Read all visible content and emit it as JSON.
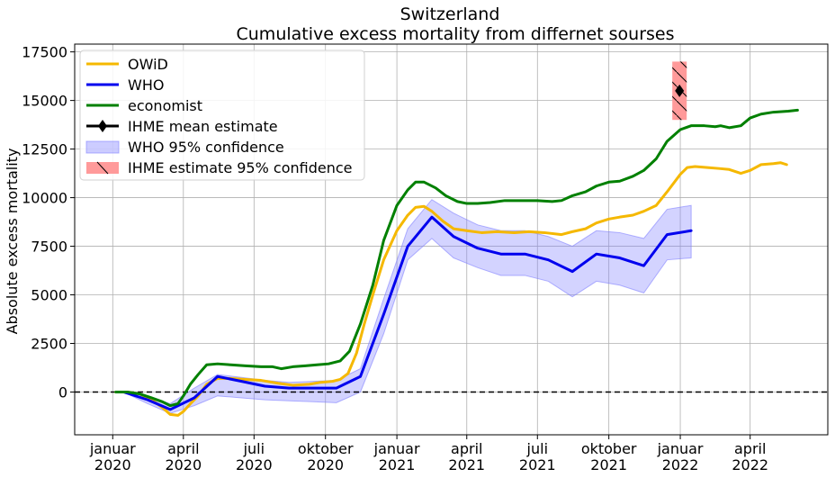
{
  "chart_data": {
    "type": "line",
    "title": "Switzerland",
    "subtitle": "Cumulative excess mortality from differnet sourses",
    "xlabel": "",
    "ylabel": "Absolute excess mortality",
    "xlim": [
      "2019-11-13",
      "2022-07-10"
    ],
    "ylim": [
      -2200,
      17900
    ],
    "grid": true,
    "legend_position": "top-left",
    "y_ticks": [
      0,
      2500,
      5000,
      7500,
      10000,
      12500,
      15000,
      17500
    ],
    "x_ticks": [
      {
        "date": "2020-01-01",
        "label": "januar\n2020"
      },
      {
        "date": "2020-04-01",
        "label": "april\n2020"
      },
      {
        "date": "2020-07-01",
        "label": "juli\n2020"
      },
      {
        "date": "2020-10-01",
        "label": "oktober\n2020"
      },
      {
        "date": "2021-01-01",
        "label": "januar\n2021"
      },
      {
        "date": "2021-04-01",
        "label": "april\n2021"
      },
      {
        "date": "2021-07-01",
        "label": "juli\n2021"
      },
      {
        "date": "2021-10-01",
        "label": "oktober\n2021"
      },
      {
        "date": "2022-01-01",
        "label": "januar\n2022"
      },
      {
        "date": "2022-04-01",
        "label": "april\n2022"
      }
    ],
    "reference_line": {
      "y": 0,
      "style": "dashed",
      "color": "#000000"
    },
    "series": [
      {
        "name": "OWiD",
        "color": "#f5b800",
        "points": [
          [
            "2020-01-05",
            0
          ],
          [
            "2020-01-20",
            0
          ],
          [
            "2020-02-05",
            -100
          ],
          [
            "2020-02-20",
            -400
          ],
          [
            "2020-03-05",
            -800
          ],
          [
            "2020-03-15",
            -1150
          ],
          [
            "2020-03-25",
            -1200
          ],
          [
            "2020-04-01",
            -1000
          ],
          [
            "2020-04-10",
            -600
          ],
          [
            "2020-04-20",
            -200
          ],
          [
            "2020-05-01",
            400
          ],
          [
            "2020-05-15",
            700
          ],
          [
            "2020-06-01",
            700
          ],
          [
            "2020-06-20",
            650
          ],
          [
            "2020-07-10",
            600
          ],
          [
            "2020-08-01",
            450
          ],
          [
            "2020-08-20",
            350
          ],
          [
            "2020-09-10",
            400
          ],
          [
            "2020-09-25",
            500
          ],
          [
            "2020-10-10",
            550
          ],
          [
            "2020-10-20",
            650
          ],
          [
            "2020-10-30",
            950
          ],
          [
            "2020-11-10",
            2000
          ],
          [
            "2020-11-20",
            3500
          ],
          [
            "2020-12-01",
            5000
          ],
          [
            "2020-12-15",
            6800
          ],
          [
            "2021-01-01",
            8300
          ],
          [
            "2021-01-15",
            9100
          ],
          [
            "2021-01-25",
            9500
          ],
          [
            "2021-02-05",
            9550
          ],
          [
            "2021-02-15",
            9300
          ],
          [
            "2021-03-01",
            8800
          ],
          [
            "2021-03-15",
            8400
          ],
          [
            "2021-04-01",
            8300
          ],
          [
            "2021-04-20",
            8200
          ],
          [
            "2021-05-10",
            8250
          ],
          [
            "2021-06-01",
            8200
          ],
          [
            "2021-06-20",
            8250
          ],
          [
            "2021-07-10",
            8200
          ],
          [
            "2021-08-01",
            8100
          ],
          [
            "2021-08-15",
            8250
          ],
          [
            "2021-09-01",
            8400
          ],
          [
            "2021-09-15",
            8700
          ],
          [
            "2021-10-01",
            8900
          ],
          [
            "2021-10-15",
            9000
          ],
          [
            "2021-11-01",
            9100
          ],
          [
            "2021-11-15",
            9300
          ],
          [
            "2021-12-01",
            9600
          ],
          [
            "2021-12-15",
            10300
          ],
          [
            "2022-01-01",
            11200
          ],
          [
            "2022-01-10",
            11550
          ],
          [
            "2022-01-20",
            11600
          ],
          [
            "2022-02-05",
            11550
          ],
          [
            "2022-02-20",
            11500
          ],
          [
            "2022-03-05",
            11450
          ],
          [
            "2022-03-20",
            11250
          ],
          [
            "2022-04-01",
            11400
          ],
          [
            "2022-04-15",
            11700
          ],
          [
            "2022-05-01",
            11750
          ],
          [
            "2022-05-10",
            11800
          ],
          [
            "2022-05-18",
            11700
          ]
        ]
      },
      {
        "name": "WHO",
        "color": "#0000ee",
        "points": [
          [
            "2020-01-15",
            0
          ],
          [
            "2020-02-15",
            -400
          ],
          [
            "2020-03-15",
            -900
          ],
          [
            "2020-04-15",
            -300
          ],
          [
            "2020-05-15",
            800
          ],
          [
            "2020-06-15",
            550
          ],
          [
            "2020-07-15",
            300
          ],
          [
            "2020-08-15",
            200
          ],
          [
            "2020-09-15",
            200
          ],
          [
            "2020-10-15",
            200
          ],
          [
            "2020-11-15",
            800
          ],
          [
            "2020-12-15",
            4000
          ],
          [
            "2021-01-15",
            7500
          ],
          [
            "2021-02-15",
            9000
          ],
          [
            "2021-03-15",
            8000
          ],
          [
            "2021-04-15",
            7400
          ],
          [
            "2021-05-15",
            7100
          ],
          [
            "2021-06-15",
            7100
          ],
          [
            "2021-07-15",
            6800
          ],
          [
            "2021-08-15",
            6200
          ],
          [
            "2021-09-15",
            7100
          ],
          [
            "2021-10-15",
            6900
          ],
          [
            "2021-11-15",
            6500
          ],
          [
            "2021-12-15",
            8100
          ],
          [
            "2022-01-15",
            8300
          ]
        ]
      },
      {
        "name": "economist",
        "color": "#008000",
        "points": [
          [
            "2020-01-05",
            0
          ],
          [
            "2020-01-20",
            0
          ],
          [
            "2020-02-05",
            -100
          ],
          [
            "2020-02-20",
            -300
          ],
          [
            "2020-03-05",
            -500
          ],
          [
            "2020-03-15",
            -700
          ],
          [
            "2020-03-25",
            -600
          ],
          [
            "2020-04-01",
            -200
          ],
          [
            "2020-04-10",
            400
          ],
          [
            "2020-04-20",
            900
          ],
          [
            "2020-05-01",
            1400
          ],
          [
            "2020-05-15",
            1450
          ],
          [
            "2020-06-01",
            1400
          ],
          [
            "2020-06-20",
            1350
          ],
          [
            "2020-07-10",
            1300
          ],
          [
            "2020-07-25",
            1300
          ],
          [
            "2020-08-05",
            1200
          ],
          [
            "2020-08-20",
            1300
          ],
          [
            "2020-09-05",
            1350
          ],
          [
            "2020-09-20",
            1400
          ],
          [
            "2020-10-05",
            1450
          ],
          [
            "2020-10-20",
            1600
          ],
          [
            "2020-11-01",
            2100
          ],
          [
            "2020-11-15",
            3500
          ],
          [
            "2020-12-01",
            5500
          ],
          [
            "2020-12-15",
            7800
          ],
          [
            "2021-01-01",
            9600
          ],
          [
            "2021-01-15",
            10400
          ],
          [
            "2021-01-25",
            10800
          ],
          [
            "2021-02-05",
            10800
          ],
          [
            "2021-02-20",
            10500
          ],
          [
            "2021-03-05",
            10100
          ],
          [
            "2021-03-20",
            9800
          ],
          [
            "2021-04-01",
            9700
          ],
          [
            "2021-04-15",
            9700
          ],
          [
            "2021-05-01",
            9750
          ],
          [
            "2021-05-20",
            9850
          ],
          [
            "2021-06-10",
            9850
          ],
          [
            "2021-07-01",
            9850
          ],
          [
            "2021-07-20",
            9800
          ],
          [
            "2021-08-01",
            9850
          ],
          [
            "2021-08-15",
            10100
          ],
          [
            "2021-09-01",
            10300
          ],
          [
            "2021-09-15",
            10600
          ],
          [
            "2021-10-01",
            10800
          ],
          [
            "2021-10-15",
            10850
          ],
          [
            "2021-11-01",
            11100
          ],
          [
            "2021-11-15",
            11400
          ],
          [
            "2021-12-01",
            12000
          ],
          [
            "2021-12-15",
            12900
          ],
          [
            "2022-01-01",
            13500
          ],
          [
            "2022-01-15",
            13700
          ],
          [
            "2022-02-01",
            13700
          ],
          [
            "2022-02-15",
            13650
          ],
          [
            "2022-02-22",
            13700
          ],
          [
            "2022-03-05",
            13600
          ],
          [
            "2022-03-20",
            13700
          ],
          [
            "2022-04-01",
            14100
          ],
          [
            "2022-04-15",
            14300
          ],
          [
            "2022-05-01",
            14400
          ],
          [
            "2022-05-20",
            14450
          ],
          [
            "2022-06-01",
            14500
          ]
        ]
      }
    ],
    "bands": [
      {
        "name": "WHO 95% confidence",
        "color": "#8080ff",
        "opacity": 0.35,
        "lower": [
          [
            "2020-01-15",
            0
          ],
          [
            "2020-02-15",
            -600
          ],
          [
            "2020-03-15",
            -1100
          ],
          [
            "2020-04-15",
            -700
          ],
          [
            "2020-05-15",
            -200
          ],
          [
            "2020-06-15",
            -300
          ],
          [
            "2020-07-15",
            -400
          ],
          [
            "2020-08-15",
            -450
          ],
          [
            "2020-09-15",
            -500
          ],
          [
            "2020-10-15",
            -550
          ],
          [
            "2020-11-15",
            0
          ],
          [
            "2020-12-15",
            3000
          ],
          [
            "2021-01-15",
            6800
          ],
          [
            "2021-02-15",
            7900
          ],
          [
            "2021-03-15",
            6900
          ],
          [
            "2021-04-15",
            6400
          ],
          [
            "2021-05-15",
            6000
          ],
          [
            "2021-06-15",
            6000
          ],
          [
            "2021-07-15",
            5700
          ],
          [
            "2021-08-15",
            4900
          ],
          [
            "2021-09-15",
            5700
          ],
          [
            "2021-10-15",
            5500
          ],
          [
            "2021-11-15",
            5100
          ],
          [
            "2021-12-15",
            6800
          ],
          [
            "2022-01-15",
            6900
          ]
        ],
        "upper": [
          [
            "2020-01-15",
            0
          ],
          [
            "2020-02-15",
            -200
          ],
          [
            "2020-03-15",
            -600
          ],
          [
            "2020-04-15",
            200
          ],
          [
            "2020-05-15",
            900
          ],
          [
            "2020-06-15",
            750
          ],
          [
            "2020-07-15",
            600
          ],
          [
            "2020-08-15",
            500
          ],
          [
            "2020-09-15",
            550
          ],
          [
            "2020-10-15",
            600
          ],
          [
            "2020-11-15",
            1200
          ],
          [
            "2020-12-15",
            4800
          ],
          [
            "2021-01-15",
            8400
          ],
          [
            "2021-02-15",
            9900
          ],
          [
            "2021-03-15",
            9200
          ],
          [
            "2021-04-15",
            8600
          ],
          [
            "2021-05-15",
            8300
          ],
          [
            "2021-06-15",
            8300
          ],
          [
            "2021-07-15",
            8000
          ],
          [
            "2021-08-15",
            7500
          ],
          [
            "2021-09-15",
            8300
          ],
          [
            "2021-10-15",
            8200
          ],
          [
            "2021-11-15",
            7900
          ],
          [
            "2021-12-15",
            9400
          ],
          [
            "2022-01-15",
            9600
          ]
        ]
      }
    ],
    "ihme": {
      "mean_label": "IHME mean estimate",
      "ci_label": " IHME estimate 95% confidence",
      "date": "2021-12-31",
      "mean": 15500,
      "ci_low": 14000,
      "ci_high": 17000,
      "mean_color": "#000000",
      "ci_color": "#ff9a9a"
    },
    "legend": [
      {
        "label": "OWiD",
        "kind": "line",
        "color": "#f5b800"
      },
      {
        "label": "WHO",
        "kind": "line",
        "color": "#0000ee"
      },
      {
        "label": "economist",
        "kind": "line",
        "color": "#008000"
      },
      {
        "label": "IHME mean estimate",
        "kind": "diamond",
        "color": "#000000"
      },
      {
        "label": "WHO 95% confidence",
        "kind": "band",
        "color": "#8080ff"
      },
      {
        "label": " IHME estimate 95% confidence",
        "kind": "hatch",
        "color": "#ff9a9a"
      }
    ]
  }
}
